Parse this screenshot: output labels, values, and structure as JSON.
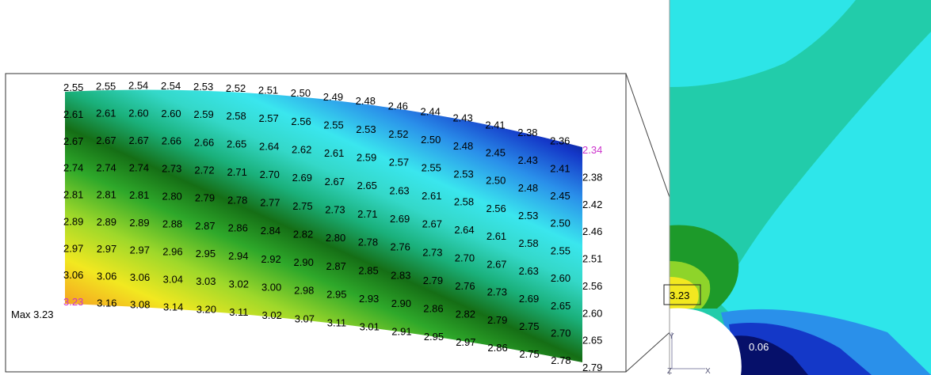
{
  "rows": [
    [
      "2.55",
      "2.55",
      "2.54",
      "2.54",
      "2.53",
      "2.52",
      "2.51",
      "2.50",
      "2.49",
      "2.48",
      "2.46",
      "2.44",
      "2.43",
      "2.41",
      "2.38",
      "2.36",
      "2.34"
    ],
    [
      "2.61",
      "2.61",
      "2.60",
      "2.60",
      "2.59",
      "2.58",
      "2.57",
      "2.56",
      "2.55",
      "2.53",
      "2.52",
      "2.50",
      "2.48",
      "2.45",
      "2.43",
      "2.41",
      "2.38"
    ],
    [
      "2.67",
      "2.67",
      "2.67",
      "2.66",
      "2.66",
      "2.65",
      "2.64",
      "2.62",
      "2.61",
      "2.59",
      "2.57",
      "2.55",
      "2.53",
      "2.50",
      "2.48",
      "2.45",
      "2.42"
    ],
    [
      "2.74",
      "2.74",
      "2.74",
      "2.73",
      "2.72",
      "2.71",
      "2.70",
      "2.69",
      "2.67",
      "2.65",
      "2.63",
      "2.61",
      "2.58",
      "2.56",
      "2.53",
      "2.50",
      "2.46"
    ],
    [
      "2.81",
      "2.81",
      "2.81",
      "2.80",
      "2.79",
      "2.78",
      "2.77",
      "2.75",
      "2.73",
      "2.71",
      "2.69",
      "2.67",
      "2.64",
      "2.61",
      "2.58",
      "2.55",
      "2.51"
    ],
    [
      "2.89",
      "2.89",
      "2.89",
      "2.88",
      "2.87",
      "2.86",
      "2.84",
      "2.82",
      "2.80",
      "2.78",
      "2.76",
      "2.73",
      "2.70",
      "2.67",
      "2.63",
      "2.60",
      "2.56"
    ],
    [
      "2.97",
      "2.97",
      "2.97",
      "2.96",
      "2.95",
      "2.94",
      "2.92",
      "2.90",
      "2.87",
      "2.85",
      "2.83",
      "2.79",
      "2.76",
      "2.73",
      "2.69",
      "2.65",
      "2.60"
    ],
    [
      "3.06",
      "3.06",
      "3.06",
      "3.04",
      "3.03",
      "3.02",
      "3.00",
      "2.98",
      "2.95",
      "2.93",
      "2.90",
      "2.86",
      "2.82",
      "2.79",
      "2.75",
      "2.70",
      "2.65"
    ],
    [
      "3.23",
      "3.16",
      "3.08",
      "3.14",
      "3.20",
      "3.11",
      "3.02",
      "3.07",
      "3.11",
      "3.01",
      "2.91",
      "2.95",
      "2.97",
      "2.86",
      "2.75",
      "2.78",
      "2.79"
    ]
  ],
  "max_label": "Max 3.23",
  "min_value_label": "2.34",
  "max_value": "3.23",
  "hole_max_label": "3.23",
  "hole_min_label": "0.06",
  "axis_y_label": "Y",
  "axis_z_label": "Z",
  "axis_x_label": "X",
  "highlight_color": "#cc33cc"
}
